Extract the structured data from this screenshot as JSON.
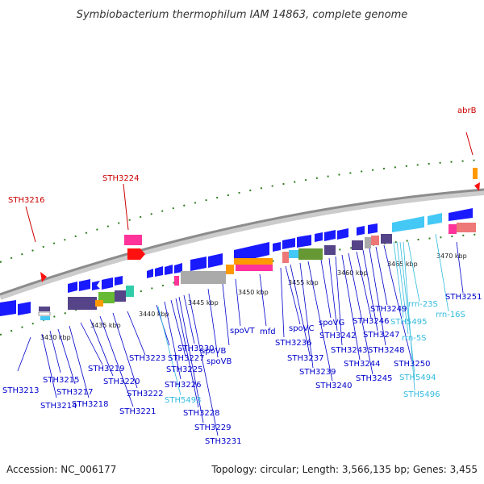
{
  "title": "Symbiobacterium thermophilum IAM 14863, complete genome",
  "footer": {
    "accession": "Accession: NC_006177",
    "topology": "Topology: circular; Length: 3,566,135 bp; Genes: 3,455"
  },
  "colors": {
    "backbone": "#8c8c8c",
    "tick": "#2e7d1e",
    "gene": "#1a1aff",
    "rna": "#44c8f5",
    "label_blue": "#0000cc",
    "label_cyan": "#33bbdd",
    "label_red": "#cc0000",
    "pink": "#ff3399",
    "red": "#ff1111",
    "green": "#66bb33",
    "purple": "#554488",
    "gray": "#aaaaaa",
    "orange": "#ff9900",
    "salmon": "#ee7777",
    "teal": "#33ccaa",
    "olive": "#669933"
  },
  "kbp_labels": [
    "3430 kbp",
    "3435 kbp",
    "3440 kbp",
    "3445 kbp",
    "3450 kbp",
    "3455 kbp",
    "3460 kbp",
    "3465 kbp",
    "3470 kbp"
  ],
  "labels_top": [
    {
      "text": "STH3216",
      "color": "red"
    },
    {
      "text": "STH3224",
      "color": "red"
    },
    {
      "text": "abrB",
      "color": "red"
    }
  ],
  "labels_bottom": [
    {
      "text": "STH3213",
      "color": "blue"
    },
    {
      "text": "STH3214",
      "color": "blue"
    },
    {
      "text": "STH3215",
      "color": "blue"
    },
    {
      "text": "STH3217",
      "color": "blue"
    },
    {
      "text": "STH3218",
      "color": "blue"
    },
    {
      "text": "STH3219",
      "color": "blue"
    },
    {
      "text": "STH3220",
      "color": "blue"
    },
    {
      "text": "STH3221",
      "color": "blue"
    },
    {
      "text": "STH3222",
      "color": "blue"
    },
    {
      "text": "STH3223",
      "color": "blue"
    },
    {
      "text": "STH5493",
      "color": "cyan"
    },
    {
      "text": "STH3225",
      "color": "blue"
    },
    {
      "text": "STH3226",
      "color": "blue"
    },
    {
      "text": "STH3227",
      "color": "blue"
    },
    {
      "text": "STH3228",
      "color": "blue"
    },
    {
      "text": "STH3229",
      "color": "blue"
    },
    {
      "text": "STH3230",
      "color": "blue"
    },
    {
      "text": "STH3231",
      "color": "blue"
    },
    {
      "text": "spoVB",
      "color": "blue"
    },
    {
      "text": "spoVB",
      "color": "blue"
    },
    {
      "text": "spoVT",
      "color": "blue"
    },
    {
      "text": "mfd",
      "color": "blue"
    },
    {
      "text": "STH3236",
      "color": "blue"
    },
    {
      "text": "spoVC",
      "color": "blue"
    },
    {
      "text": "STH3237",
      "color": "blue"
    },
    {
      "text": "STH3239",
      "color": "blue"
    },
    {
      "text": "STH3240",
      "color": "blue"
    },
    {
      "text": "spoVG",
      "color": "blue"
    },
    {
      "text": "STH3242",
      "color": "blue"
    },
    {
      "text": "STH3243",
      "color": "blue"
    },
    {
      "text": "STH3244",
      "color": "blue"
    },
    {
      "text": "STH3245",
      "color": "blue"
    },
    {
      "text": "STH3246",
      "color": "blue"
    },
    {
      "text": "STH3247",
      "color": "blue"
    },
    {
      "text": "STH3248",
      "color": "blue"
    },
    {
      "text": "STH3249",
      "color": "blue"
    },
    {
      "text": "STH3250",
      "color": "blue"
    },
    {
      "text": "STH5495",
      "color": "cyan"
    },
    {
      "text": "rrn-5S",
      "color": "cyan"
    },
    {
      "text": "STH5494",
      "color": "cyan"
    },
    {
      "text": "STH5496",
      "color": "cyan"
    },
    {
      "text": "rrn-23S",
      "color": "cyan"
    },
    {
      "text": "rrn-16S",
      "color": "cyan"
    },
    {
      "text": "STH3251",
      "color": "blue"
    }
  ]
}
